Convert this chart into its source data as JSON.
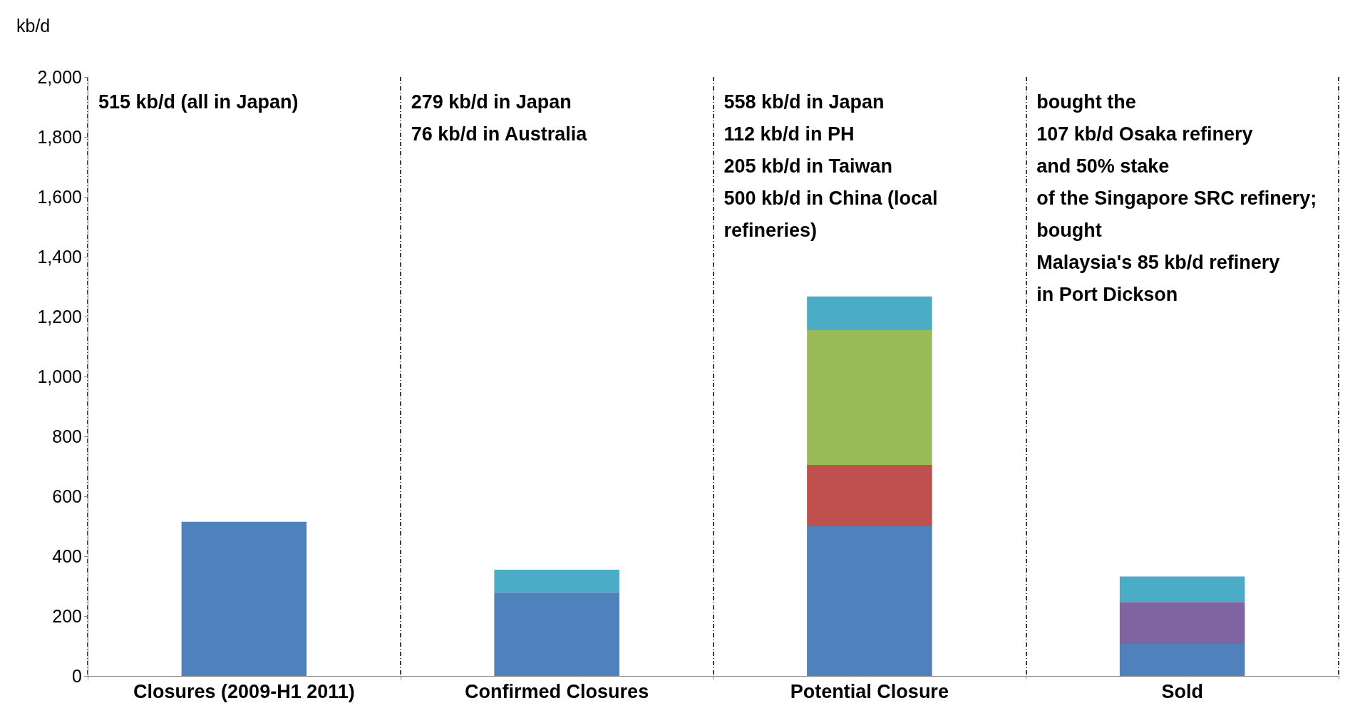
{
  "chart_data": {
    "type": "bar",
    "stacked": true,
    "ylabel": "kb/d",
    "categories": [
      "Closures (2009-H1 2011)",
      "Confirmed Closures",
      "Potential Closure",
      "Sold"
    ],
    "series": [
      {
        "color": "#4f81bd",
        "values": [
          515,
          279,
          500,
          107
        ]
      },
      {
        "color": "#c0504d",
        "values": [
          null,
          null,
          205,
          null
        ]
      },
      {
        "color": "#9bbb59",
        "values": [
          null,
          null,
          450,
          null
        ]
      },
      {
        "color": "#8064a2",
        "values": [
          null,
          null,
          null,
          140
        ]
      },
      {
        "color": "#4bacc6",
        "values": [
          null,
          76,
          112,
          85
        ]
      }
    ],
    "ylim": [
      0,
      2000
    ],
    "yticks": [
      {
        "value": 0,
        "label": "0"
      },
      {
        "value": 200,
        "label": "200"
      },
      {
        "value": 400,
        "label": "400"
      },
      {
        "value": 600,
        "label": "600"
      },
      {
        "value": 800,
        "label": "800"
      },
      {
        "value": 1000,
        "label": "1,000"
      },
      {
        "value": 1200,
        "label": "1,200"
      },
      {
        "value": 1400,
        "label": "1,400"
      },
      {
        "value": 1600,
        "label": "1,600"
      },
      {
        "value": 1800,
        "label": "1,800"
      },
      {
        "value": 2000,
        "label": "2,000"
      }
    ],
    "grid": "x",
    "annotations": [
      "515 kb/d (all in Japan)",
      "279 kb/d in Japan\n76 kb/d in Australia",
      "558 kb/d in Japan\n112 kb/d in PH\n205 kb/d in Taiwan\n500 kb/d in China (local\nrefineries)",
      "bought the\n107 kb/d Osaka refinery\nand 50% stake\nof the Singapore SRC refinery;\nbought\nMalaysia's 85 kb/d refinery\nin Port Dickson"
    ]
  }
}
